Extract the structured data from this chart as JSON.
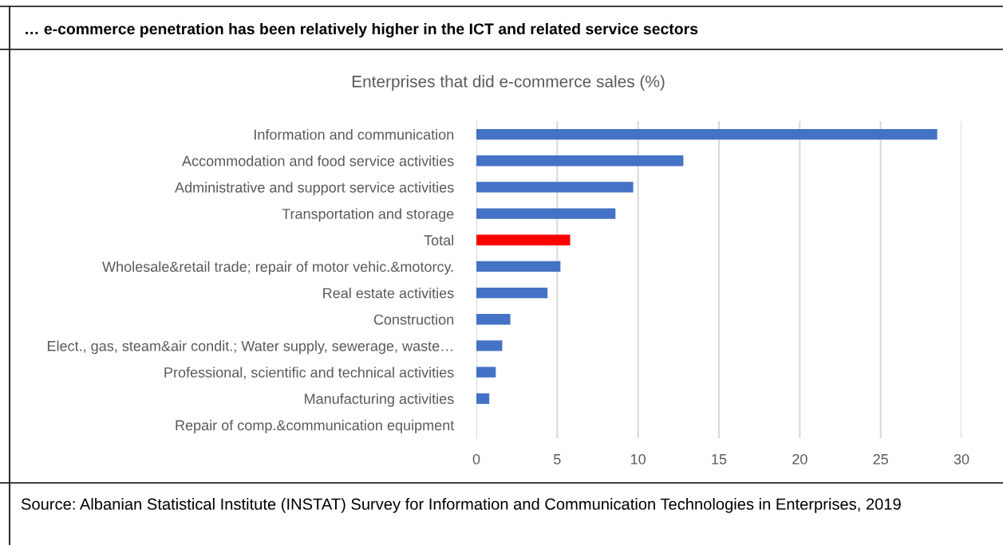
{
  "chart_data": {
    "type": "bar",
    "orientation": "horizontal",
    "title": "… e-commerce penetration has been relatively higher in the ICT and related service sectors",
    "subtitle": "Enterprises that did e-commerce sales (%)",
    "categories": [
      "Information and communication",
      "Accommodation and food service activities",
      "Administrative and support service activities",
      "Transportation and storage",
      "Total",
      "Wholesale&retail trade; repair of motor vehic.&motorcy.",
      "Real estate activities",
      "Construction",
      "Elect., gas, steam&air condit.; Water supply, sewerage, waste…",
      "Professional, scientific and technical activities",
      "Manufacturing activities",
      "Repair of comp.&communication equipment"
    ],
    "values": [
      28.5,
      12.8,
      9.7,
      8.6,
      5.8,
      5.2,
      4.4,
      2.1,
      1.6,
      1.2,
      0.8,
      0
    ],
    "colors": [
      "#4472c4",
      "#4472c4",
      "#4472c4",
      "#4472c4",
      "#ff0000",
      "#4472c4",
      "#4472c4",
      "#4472c4",
      "#4472c4",
      "#4472c4",
      "#4472c4",
      "#4472c4"
    ],
    "xlim": [
      0,
      30
    ],
    "xticks": [
      0,
      5,
      10,
      15,
      20,
      25,
      30
    ],
    "grid": "x",
    "annotations": [
      "Source: Albanian Statistical Institute (INSTAT) Survey for Information and Communication Technologies in Enterprises, 2019"
    ]
  }
}
